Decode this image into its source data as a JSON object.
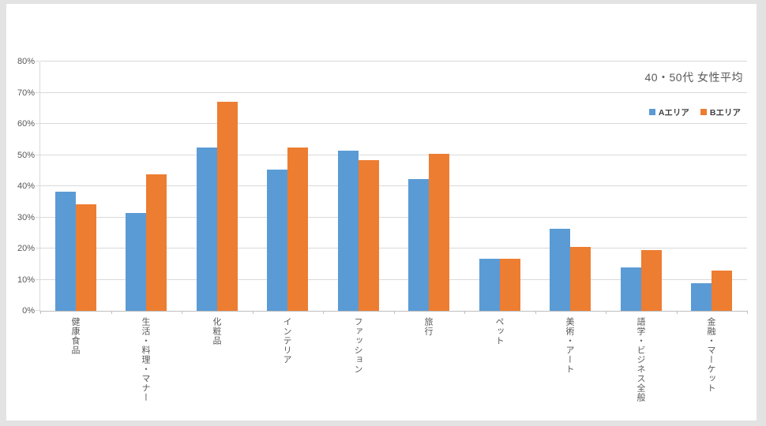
{
  "page": {
    "background_color": "#e3e3e3",
    "card_color": "#ffffff"
  },
  "chart_data": {
    "type": "bar",
    "title": "40・50代 女性平均",
    "categories": [
      "健康食品",
      "生活・料理・マナー",
      "化粧品",
      "インテリア",
      "ファッション",
      "旅行",
      "ペット",
      "美術・アート",
      "語学・ビジネス全般",
      "金融・マーケット"
    ],
    "series": [
      {
        "name": "Aエリア",
        "color": "#5B9BD5",
        "values": [
          38.3,
          31.3,
          52.5,
          45.4,
          51.3,
          42.3,
          16.7,
          26.3,
          13.8,
          8.9
        ]
      },
      {
        "name": "Bエリア",
        "color": "#ED7D31",
        "values": [
          34.3,
          43.9,
          67.2,
          52.4,
          48.3,
          50.3,
          16.7,
          20.5,
          19.4,
          13.0
        ]
      }
    ],
    "xlabel": "",
    "ylabel": "",
    "ylim": [
      0,
      80
    ],
    "y_ticks": [
      "0%",
      "10%",
      "20%",
      "30%",
      "40%",
      "50%",
      "60%",
      "70%",
      "80%"
    ],
    "grid": "horizontal",
    "legend_position": "top-right",
    "colors": {
      "gridline": "#d9d9d9",
      "axis_line": "#bfbfbf",
      "tick_text": "#595959",
      "title_text": "#595959"
    }
  }
}
